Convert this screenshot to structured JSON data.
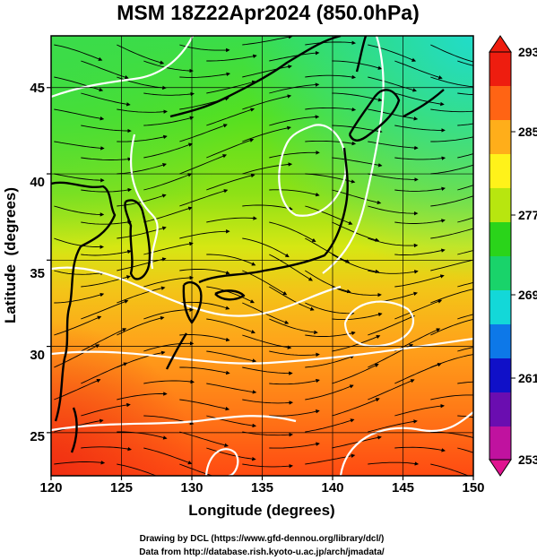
{
  "title": "MSM 18Z22Apr2024 (850.0hPa)",
  "map": {
    "type": "temperature field with streamlines and isotherms",
    "lon_range": [
      120,
      150
    ],
    "lat_range": [
      22.5,
      48
    ],
    "xlabel": "Longitude (degrees)",
    "ylabel": "Latitude  (degrees)",
    "lon_ticks": [
      "120",
      "125",
      "130",
      "135",
      "140",
      "145",
      "150"
    ],
    "lat_ticks": [
      "25",
      "30",
      "35",
      "40",
      "45"
    ],
    "lon_tick_values": [
      120,
      125,
      130,
      135,
      140,
      145,
      150
    ],
    "lat_tick_values": [
      25,
      30,
      35,
      40,
      45
    ],
    "grid": true
  },
  "colorbar": {
    "ticks": [
      "293",
      "285",
      "277",
      "269",
      "261",
      "253"
    ],
    "tick_values": [
      293,
      285,
      277,
      269,
      261,
      253
    ],
    "min": 253,
    "max": 293,
    "colors": [
      "#e0138f",
      "#6a0db0",
      "#1010c8",
      "#0d78e8",
      "#13d8d8",
      "#19d36a",
      "#2ad41a",
      "#b8e60f",
      "#fff21a",
      "#ffae1a",
      "#ff6414",
      "#ee1d0f"
    ]
  },
  "credits": {
    "line1": "Drawing by DCL (https://www.gfd-dennou.org/library/dcl/)",
    "line2": "Data from http://database.rish.kyoto-u.ac.jp/arch/jmadata/"
  }
}
